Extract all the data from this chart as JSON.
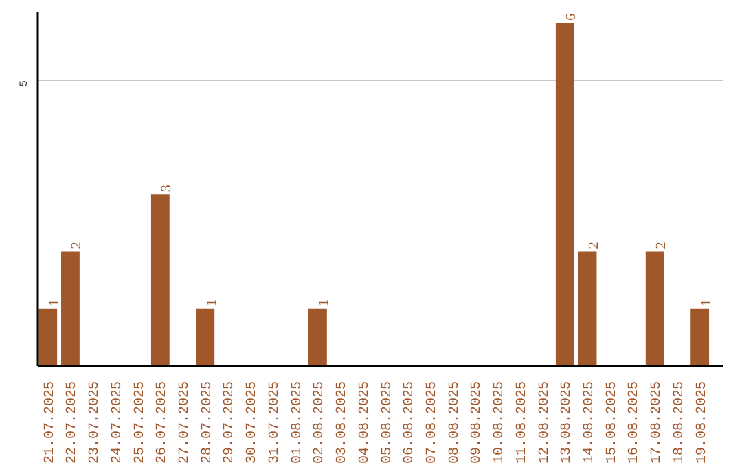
{
  "chart_data": {
    "type": "bar",
    "categories": [
      "21.07.2025",
      "22.07.2025",
      "23.07.2025",
      "24.07.2025",
      "25.07.2025",
      "26.07.2025",
      "27.07.2025",
      "28.07.2025",
      "29.07.2025",
      "30.07.2025",
      "31.07.2025",
      "01.08.2025",
      "02.08.2025",
      "03.08.2025",
      "04.08.2025",
      "05.08.2025",
      "06.08.2025",
      "07.08.2025",
      "08.08.2025",
      "09.08.2025",
      "10.08.2025",
      "11.08.2025",
      "12.08.2025",
      "13.08.2025",
      "14.08.2025",
      "15.08.2025",
      "16.08.2025",
      "17.08.2025",
      "18.08.2025",
      "19.08.2025"
    ],
    "values": [
      1,
      2,
      0,
      0,
      0,
      3,
      0,
      1,
      0,
      0,
      0,
      0,
      1,
      0,
      0,
      0,
      0,
      0,
      0,
      0,
      0,
      0,
      0,
      6,
      2,
      0,
      0,
      2,
      0,
      1
    ],
    "value_labels": [
      "1",
      "2",
      null,
      null,
      null,
      "3",
      null,
      "1",
      null,
      null,
      null,
      null,
      "1",
      null,
      null,
      null,
      null,
      null,
      null,
      null,
      null,
      null,
      null,
      "6",
      "2",
      null,
      null,
      "2",
      null,
      "1"
    ],
    "color": "#a0572a",
    "ylim": [
      0,
      6.2
    ],
    "yticks": [
      5
    ],
    "grid": "y"
  }
}
